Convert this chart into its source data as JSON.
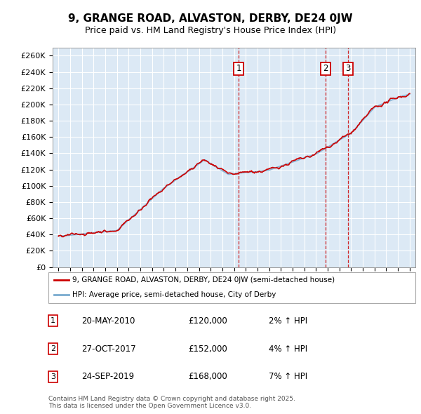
{
  "title": "9, GRANGE ROAD, ALVASTON, DERBY, DE24 0JW",
  "subtitle": "Price paid vs. HM Land Registry's House Price Index (HPI)",
  "ylabel_ticks": [
    "£0",
    "£20K",
    "£40K",
    "£60K",
    "£80K",
    "£100K",
    "£120K",
    "£140K",
    "£160K",
    "£180K",
    "£200K",
    "£220K",
    "£240K",
    "£260K"
  ],
  "ytick_values": [
    0,
    20000,
    40000,
    60000,
    80000,
    100000,
    120000,
    140000,
    160000,
    180000,
    200000,
    220000,
    240000,
    260000
  ],
  "ylim": [
    0,
    270000
  ],
  "xlim_start": 1994.5,
  "xlim_end": 2025.5,
  "background_color": "#dce9f5",
  "grid_color": "#ffffff",
  "line_color_red": "#cc0000",
  "line_color_blue": "#7aabcf",
  "legend_label_red": "9, GRANGE ROAD, ALVASTON, DERBY, DE24 0JW (semi-detached house)",
  "legend_label_blue": "HPI: Average price, semi-detached house, City of Derby",
  "sales": [
    {
      "label": "1",
      "date": "20-MAY-2010",
      "price": 120000,
      "year": 2010.38,
      "hpi_pct": "2% ↑ HPI"
    },
    {
      "label": "2",
      "date": "27-OCT-2017",
      "price": 152000,
      "year": 2017.82,
      "hpi_pct": "4% ↑ HPI"
    },
    {
      "label": "3",
      "date": "24-SEP-2019",
      "price": 168000,
      "year": 2019.73,
      "hpi_pct": "7% ↑ HPI"
    }
  ],
  "footer_text": "Contains HM Land Registry data © Crown copyright and database right 2025.\nThis data is licensed under the Open Government Licence v3.0.",
  "xtick_years": [
    1995,
    1996,
    1997,
    1998,
    1999,
    2000,
    2001,
    2002,
    2003,
    2004,
    2005,
    2006,
    2007,
    2008,
    2009,
    2010,
    2011,
    2012,
    2013,
    2014,
    2015,
    2016,
    2017,
    2018,
    2019,
    2020,
    2021,
    2022,
    2023,
    2024,
    2025
  ]
}
